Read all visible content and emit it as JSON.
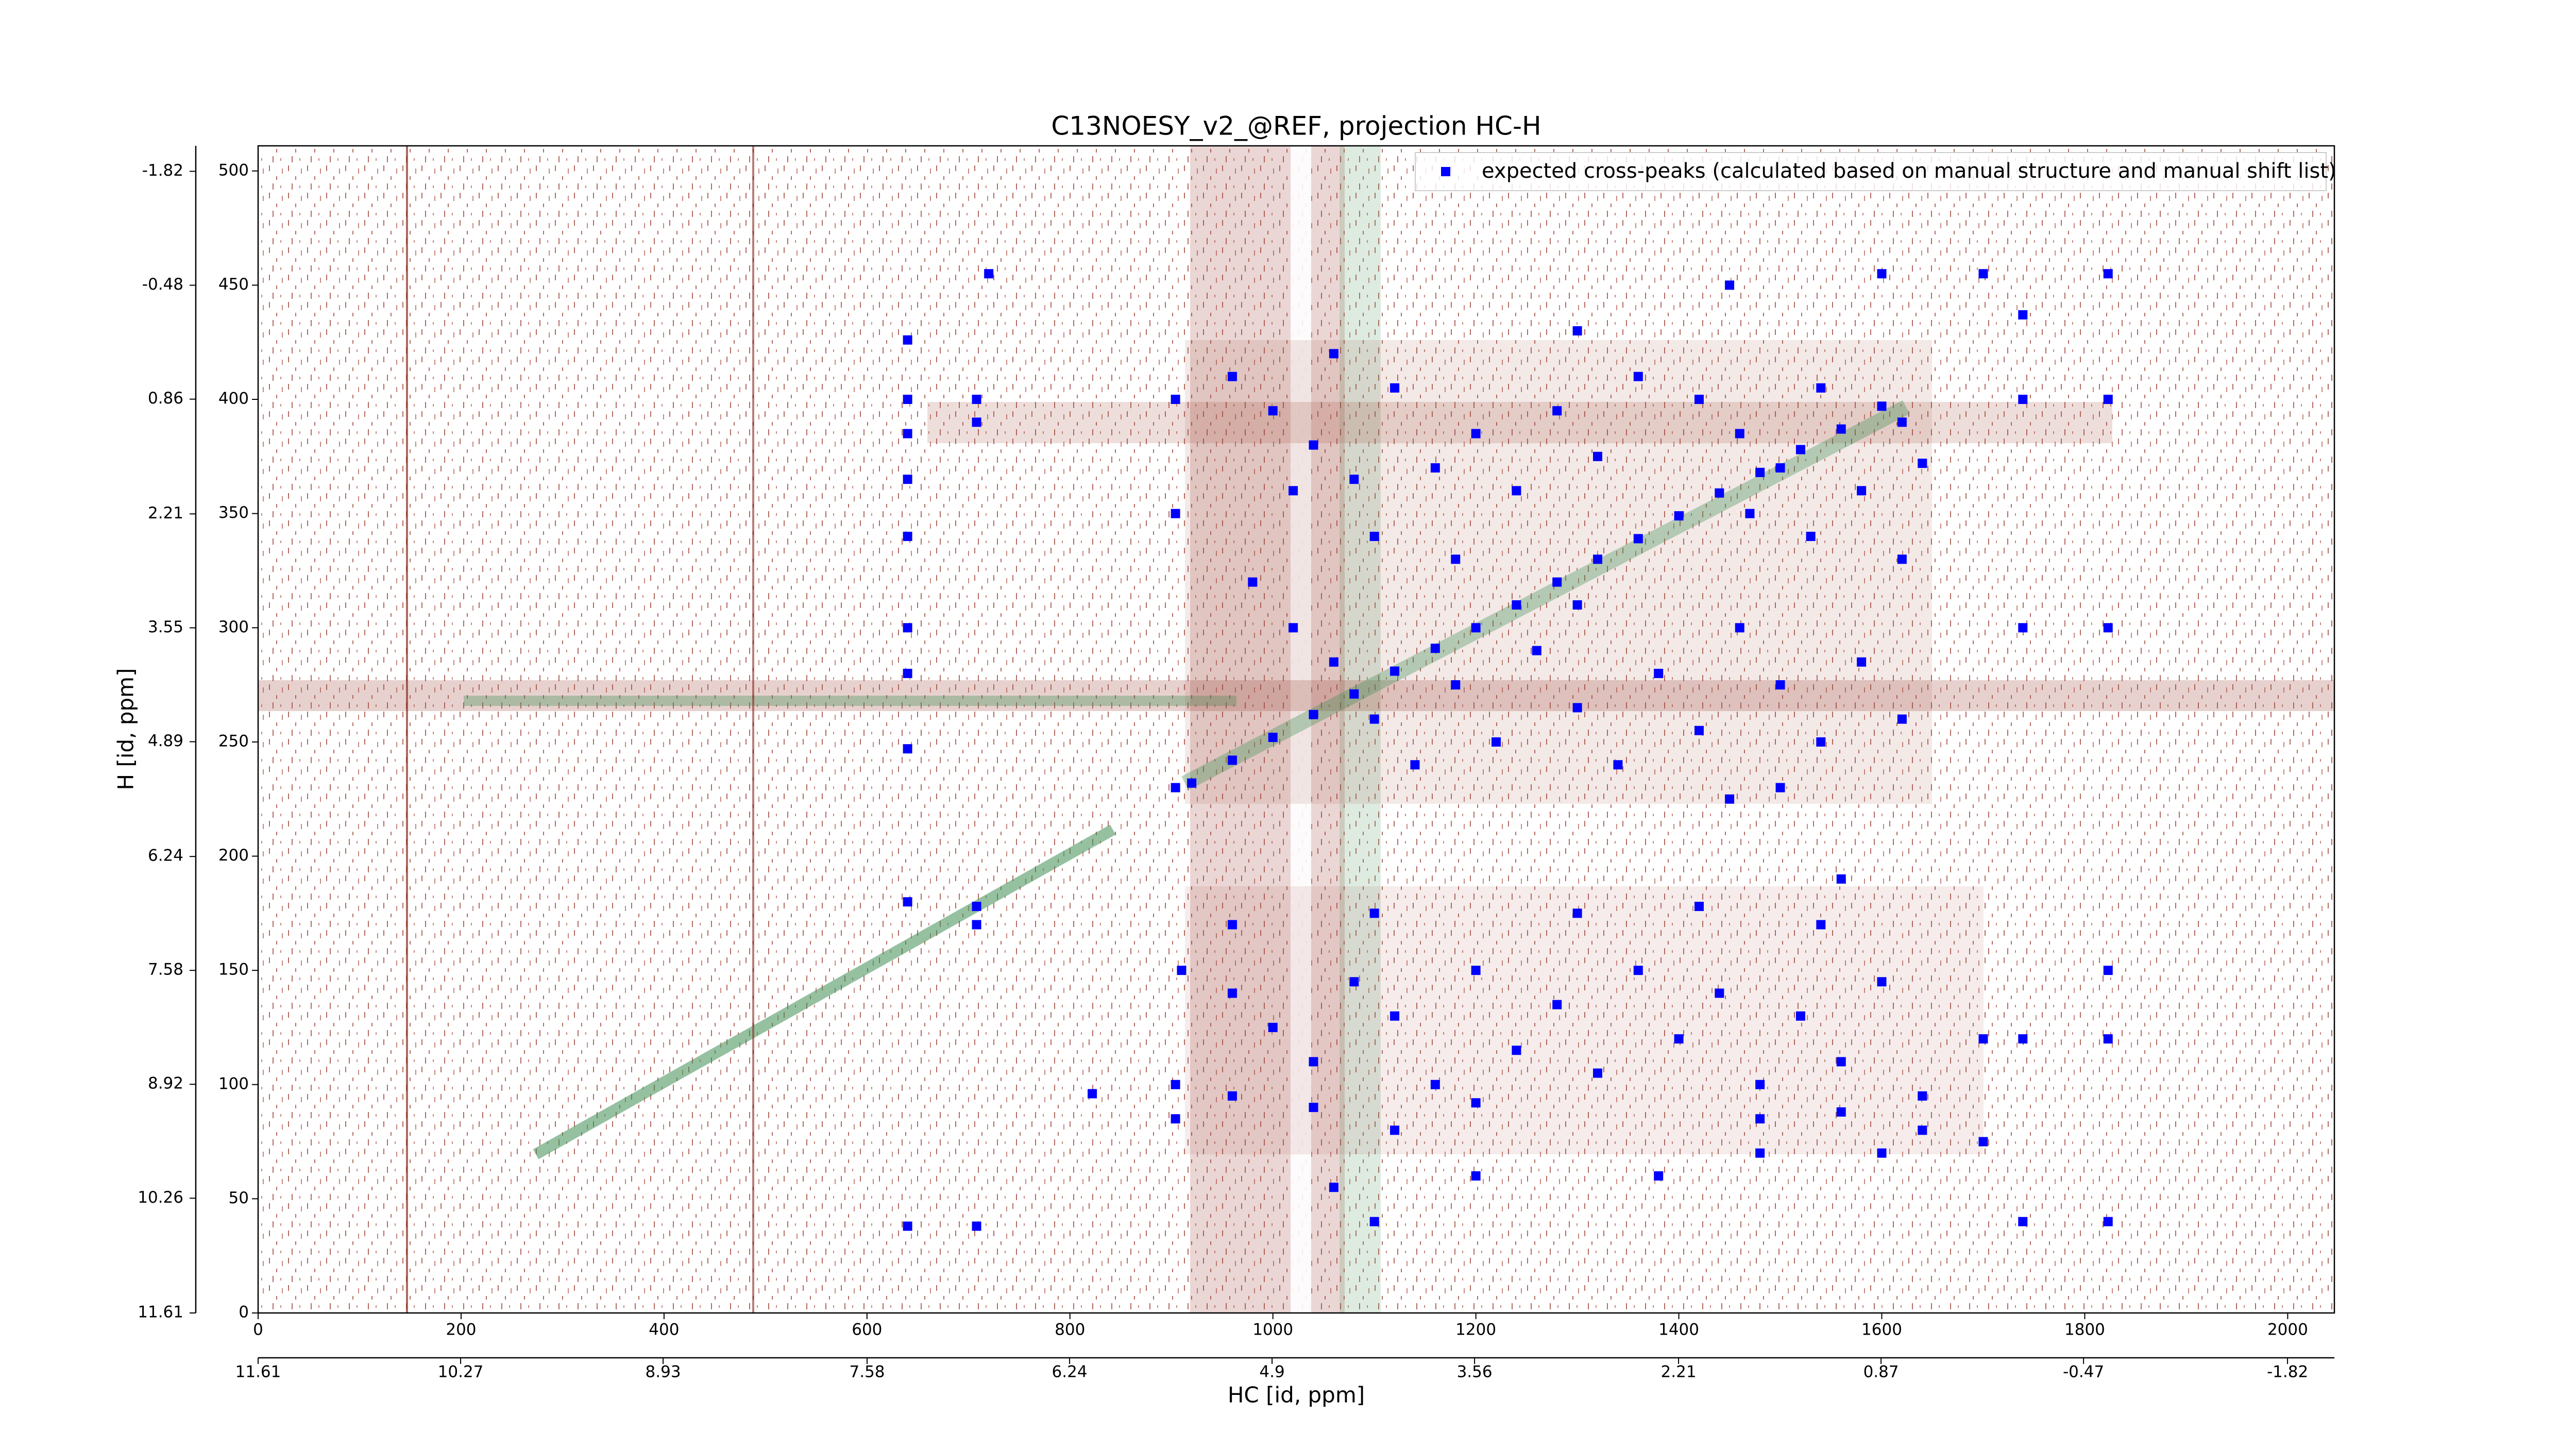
{
  "chart_data": {
    "type": "scatter",
    "title": "C13NOESY_v2_@REF, projection HC-H",
    "xlabel": "HC [id, ppm]",
    "ylabel": "H [id, ppm]",
    "xlim": [
      0,
      2046
    ],
    "xticks": [
      0,
      200,
      400,
      600,
      800,
      1000,
      1200,
      1400,
      1600,
      1800,
      2000
    ],
    "ylim": [
      0,
      511
    ],
    "yticks": [
      0,
      50,
      100,
      150,
      200,
      250,
      300,
      350,
      400,
      450,
      500
    ],
    "x2lim": [
      11.61,
      -2.13
    ],
    "x2ticks": [
      11.61,
      10.27,
      8.93,
      7.58,
      6.24,
      4.9,
      3.56,
      2.21,
      0.87,
      -0.47,
      -1.82
    ],
    "y2lim": [
      11.61,
      -2.12
    ],
    "y2ticks": [
      11.61,
      10.26,
      8.92,
      7.58,
      6.24,
      4.89,
      3.55,
      2.21,
      0.86,
      -0.48,
      -1.82
    ],
    "grid": false,
    "legend": "upper right",
    "series": [
      {
        "name": "expected cross-peaks (calculated based on manual structure and manual shift list)",
        "color": "#0000ff",
        "x": [
          640,
          640,
          640,
          640,
          640,
          640,
          640,
          640,
          640,
          640,
          708,
          708,
          708,
          708,
          708,
          720,
          822,
          904,
          904,
          904,
          904,
          904,
          920,
          960,
          1000,
          1040,
          1080,
          1120,
          1160,
          1200,
          1240,
          1280,
          1320,
          1360,
          1400,
          1440,
          1480,
          1520,
          1560,
          1600,
          960,
          1000,
          1040,
          1080,
          1120,
          1160,
          1200,
          1240,
          1280,
          1320,
          1360,
          1420,
          1460,
          1500,
          1540,
          1580,
          1620,
          1640,
          1470,
          1530,
          980,
          1020,
          1060,
          1100,
          1140,
          1180,
          1220,
          1260,
          1300,
          1340,
          1380,
          1420,
          1460,
          1500,
          1540,
          1580,
          1620,
          1500,
          1450,
          1300,
          910,
          960,
          1000,
          1040,
          1080,
          1120,
          1160,
          1200,
          1240,
          1280,
          1320,
          1360,
          1400,
          1440,
          1480,
          1520,
          1560,
          1600,
          1640,
          1700,
          960,
          1040,
          1120,
          1200,
          1480,
          1560,
          1640,
          1700,
          960,
          1100,
          1300,
          1420,
          1540,
          1060,
          1100,
          1200,
          1380,
          1480,
          1600,
          1060,
          1300,
          1450,
          1600,
          1700,
          1739,
          1823,
          1739,
          1823,
          1739,
          1823,
          1739,
          1823,
          1823,
          1739,
          1823,
          1560,
          1020,
          1100,
          1180,
          1620
        ],
        "values": [
          426,
          400,
          385,
          365,
          340,
          300,
          280,
          247,
          180,
          38,
          400,
          390,
          178,
          170,
          38,
          455,
          96,
          400,
          350,
          230,
          100,
          85,
          232,
          242,
          252,
          262,
          271,
          281,
          291,
          300,
          310,
          320,
          330,
          339,
          349,
          359,
          368,
          378,
          387,
          397,
          410,
          395,
          380,
          365,
          405,
          370,
          385,
          360,
          395,
          375,
          410,
          400,
          385,
          370,
          405,
          360,
          390,
          372,
          350,
          340,
          320,
          300,
          285,
          260,
          240,
          275,
          250,
          290,
          265,
          240,
          280,
          255,
          300,
          275,
          250,
          285,
          260,
          230,
          225,
          310,
          150,
          140,
          125,
          110,
          145,
          130,
          100,
          150,
          115,
          135,
          105,
          150,
          120,
          140,
          100,
          130,
          110,
          145,
          95,
          120,
          95,
          90,
          80,
          92,
          85,
          88,
          80,
          75,
          170,
          175,
          175,
          178,
          170,
          55,
          40,
          60,
          60,
          70,
          70,
          420,
          430,
          450,
          455,
          455,
          437,
          455,
          300,
          300,
          120,
          120,
          400,
          400,
          40,
          40,
          150,
          190,
          360,
          340,
          330,
          330
        ]
      }
    ]
  }
}
